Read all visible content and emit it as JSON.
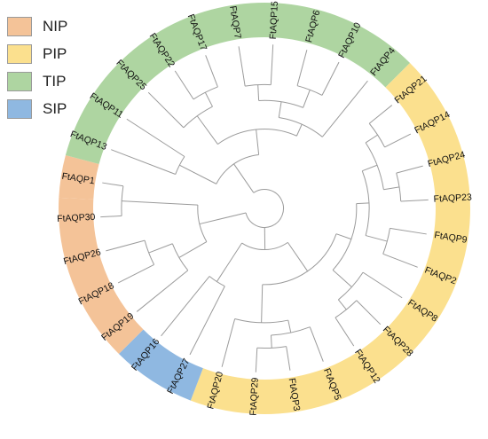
{
  "legend": [
    {
      "label": "NIP",
      "color": "#f4c398"
    },
    {
      "label": "PIP",
      "color": "#fbe08e"
    },
    {
      "label": "TIP",
      "color": "#aed5a1"
    },
    {
      "label": "SIP",
      "color": "#8fb8e1"
    }
  ],
  "tree": {
    "leaves": [
      {
        "name": "FtAQP1",
        "group": "NIP"
      },
      {
        "name": "FtAQP13",
        "group": "TIP"
      },
      {
        "name": "FtAQP11",
        "group": "TIP"
      },
      {
        "name": "FtAQP25",
        "group": "TIP"
      },
      {
        "name": "FtAQP22",
        "group": "TIP"
      },
      {
        "name": "FtAQP17",
        "group": "TIP"
      },
      {
        "name": "FtAQP7",
        "group": "TIP"
      },
      {
        "name": "FtAQP15",
        "group": "TIP"
      },
      {
        "name": "FtAQP6",
        "group": "TIP"
      },
      {
        "name": "FtAQP10",
        "group": "TIP"
      },
      {
        "name": "FtAQP4",
        "group": "TIP"
      },
      {
        "name": "FtAQP21",
        "group": "PIP"
      },
      {
        "name": "FtAQP14",
        "group": "PIP"
      },
      {
        "name": "FtAQP24",
        "group": "PIP"
      },
      {
        "name": "FtAQP23",
        "group": "PIP"
      },
      {
        "name": "FtAQP9",
        "group": "PIP"
      },
      {
        "name": "FtAQP2",
        "group": "PIP"
      },
      {
        "name": "FtAQP8",
        "group": "PIP"
      },
      {
        "name": "FtAQP28",
        "group": "PIP"
      },
      {
        "name": "FtAQP12",
        "group": "PIP"
      },
      {
        "name": "FtAQP5",
        "group": "PIP"
      },
      {
        "name": "FtAQP3",
        "group": "PIP"
      },
      {
        "name": "FtAQP29",
        "group": "PIP"
      },
      {
        "name": "FtAQP20",
        "group": "PIP"
      },
      {
        "name": "FtAQP27",
        "group": "SIP"
      },
      {
        "name": "FtAQP16",
        "group": "SIP"
      },
      {
        "name": "FtAQP19",
        "group": "NIP"
      },
      {
        "name": "FtAQP18",
        "group": "NIP"
      },
      {
        "name": "FtAQP26",
        "group": "NIP"
      },
      {
        "name": "FtAQP30",
        "group": "NIP"
      }
    ],
    "clades": [
      {
        "leaves": [
          0,
          29
        ],
        "depth": 0.9
      },
      {
        "leaves": [
          27,
          28
        ],
        "depth": 0.78
      },
      {
        "leaves": [
          26,
          27,
          28
        ],
        "depth": 0.62
      },
      {
        "leaves": [
          26,
          27,
          28,
          29,
          0
        ],
        "depth": 0.42
      },
      {
        "leaves": [
          24,
          25
        ],
        "depth": 0.55
      },
      {
        "leaves": [
          4,
          5
        ],
        "depth": 0.82
      },
      {
        "leaves": [
          3,
          4,
          5
        ],
        "depth": 0.72
      },
      {
        "leaves": [
          6,
          7
        ],
        "depth": 0.78
      },
      {
        "leaves": [
          8,
          9
        ],
        "depth": 0.8
      },
      {
        "leaves": [
          6,
          7,
          8,
          9
        ],
        "depth": 0.68
      },
      {
        "leaves": [
          6,
          7,
          8,
          9,
          10
        ],
        "depth": 0.58
      },
      {
        "leaves": [
          3,
          4,
          5,
          6,
          7,
          8,
          9,
          10
        ],
        "depth": 0.5
      },
      {
        "leaves": [
          1,
          2
        ],
        "depth": 0.6
      },
      {
        "leaves": [
          1,
          2,
          3,
          4,
          5,
          6,
          7,
          8,
          9,
          10
        ],
        "depth": 0.34
      },
      {
        "leaves": [
          11,
          12
        ],
        "depth": 0.85
      },
      {
        "leaves": [
          13,
          14
        ],
        "depth": 0.86
      },
      {
        "leaves": [
          11,
          12,
          13,
          14
        ],
        "depth": 0.76
      },
      {
        "leaves": [
          15,
          16
        ],
        "depth": 0.8
      },
      {
        "leaves": [
          11,
          12,
          13,
          14,
          15,
          16
        ],
        "depth": 0.66
      },
      {
        "leaves": [
          18,
          19
        ],
        "depth": 0.82
      },
      {
        "leaves": [
          17,
          18,
          19
        ],
        "depth": 0.74
      },
      {
        "leaves": [
          11,
          12,
          13,
          14,
          15,
          16,
          17,
          18,
          19
        ],
        "depth": 0.58
      },
      {
        "leaves": [
          21,
          22
        ],
        "depth": 0.88
      },
      {
        "leaves": [
          20,
          21,
          22
        ],
        "depth": 0.8
      },
      {
        "leaves": [
          20,
          21,
          22,
          23
        ],
        "depth": 0.72
      },
      {
        "leaves": [
          11,
          12,
          13,
          14,
          15,
          16,
          17,
          18,
          19,
          20,
          21,
          22,
          23
        ],
        "depth": 0.48
      },
      {
        "leaves": [
          11,
          12,
          13,
          14,
          15,
          16,
          17,
          18,
          19,
          20,
          21,
          22,
          23,
          24,
          25
        ],
        "depth": 0.26
      }
    ],
    "root_depth": 0.12
  }
}
